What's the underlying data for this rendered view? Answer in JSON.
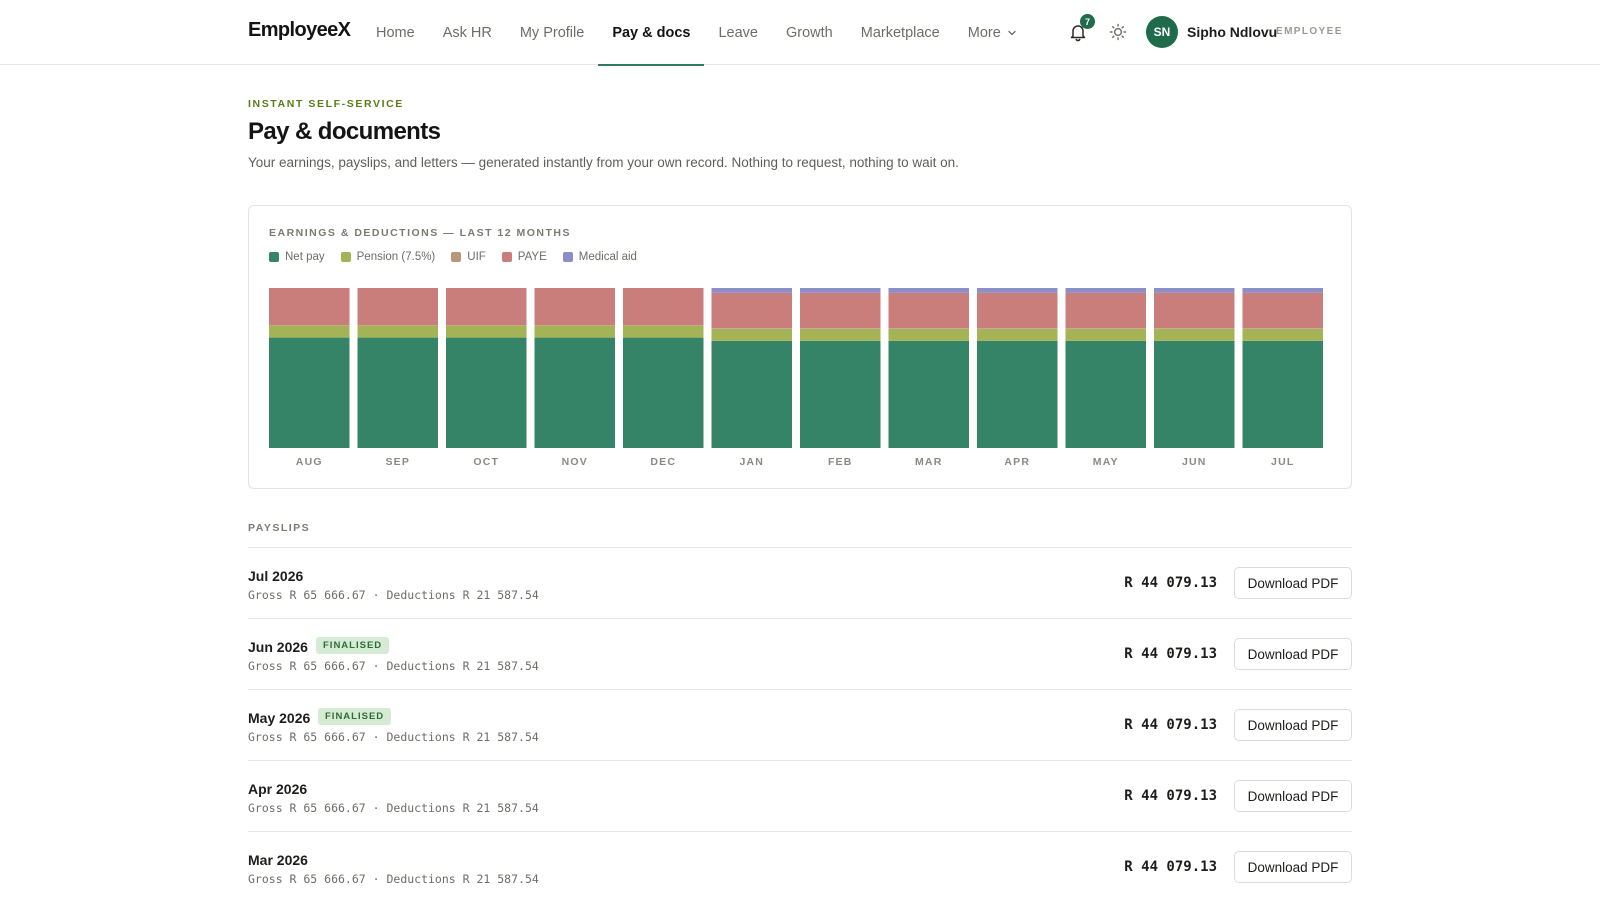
{
  "app": {
    "name": "EmployeeX"
  },
  "nav": {
    "items": [
      "Home",
      "Ask HR",
      "My Profile",
      "Pay & docs",
      "Leave",
      "Growth",
      "Marketplace",
      "More"
    ],
    "active_index": 3
  },
  "header": {
    "notifications": "7",
    "user_initials": "SN",
    "user_name": "Sipho Ndlovu",
    "user_role": "EMPLOYEE"
  },
  "intro": {
    "eyebrow": "INSTANT SELF-SERVICE",
    "title": "Pay & documents",
    "subtitle": "Your earnings, payslips, and letters — generated instantly from your own record. Nothing to request, nothing to wait on."
  },
  "colors": {
    "accent": "#1f6b4c",
    "net_pay": "#358467",
    "pension": "#a3b356",
    "uif": "#b8977a",
    "paye": "#c97e7c",
    "medical": "#8c8fc7",
    "finalised_bg": "#d5ebd4"
  },
  "chart_data": {
    "type": "bar",
    "stacked": true,
    "normalized_percent": true,
    "title": "EARNINGS & DEDUCTIONS — LAST 12 MONTHS",
    "categories": [
      "AUG",
      "SEP",
      "OCT",
      "NOV",
      "DEC",
      "JAN",
      "FEB",
      "MAR",
      "APR",
      "MAY",
      "JUN",
      "JUL"
    ],
    "legend_position": "top-left",
    "grid": false,
    "series": [
      {
        "name": "Net pay",
        "color": "#358467",
        "values": [
          69,
          69,
          69,
          69,
          69,
          67,
          67,
          67,
          67,
          67,
          67,
          67
        ]
      },
      {
        "name": "Pension (7.5%)",
        "color": "#a3b356",
        "values": [
          7.5,
          7.5,
          7.5,
          7.5,
          7.5,
          7.5,
          7.5,
          7.5,
          7.5,
          7.5,
          7.5,
          7.5
        ]
      },
      {
        "name": "UIF",
        "color": "#b8977a",
        "values": [
          0.3,
          0.3,
          0.3,
          0.3,
          0.3,
          0.3,
          0.3,
          0.3,
          0.3,
          0.3,
          0.3,
          0.3
        ]
      },
      {
        "name": "PAYE",
        "color": "#c97e7c",
        "values": [
          23.2,
          23.2,
          23.2,
          23.2,
          23.2,
          22.2,
          22.2,
          22.2,
          22.2,
          22.2,
          22.2,
          22.2
        ]
      },
      {
        "name": "Medical aid",
        "color": "#8c8fc7",
        "values": [
          0,
          0,
          0,
          0,
          0,
          3,
          3,
          3,
          3,
          3,
          3,
          3
        ]
      }
    ]
  },
  "payslips": {
    "label": "PAYSLIPS",
    "download_label": "Download PDF",
    "items": [
      {
        "period": "Jul 2026",
        "badge": "",
        "detail": "Gross R 65 666.67 · Deductions R 21 587.54",
        "net": "R 44 079.13"
      },
      {
        "period": "Jun 2026",
        "badge": "FINALISED",
        "detail": "Gross R 65 666.67 · Deductions R 21 587.54",
        "net": "R 44 079.13"
      },
      {
        "period": "May 2026",
        "badge": "FINALISED",
        "detail": "Gross R 65 666.67 · Deductions R 21 587.54",
        "net": "R 44 079.13"
      },
      {
        "period": "Apr 2026",
        "badge": "",
        "detail": "Gross R 65 666.67 · Deductions R 21 587.54",
        "net": "R 44 079.13"
      },
      {
        "period": "Mar 2026",
        "badge": "",
        "detail": "Gross R 65 666.67 · Deductions R 21 587.54",
        "net": "R 44 079.13"
      }
    ]
  }
}
